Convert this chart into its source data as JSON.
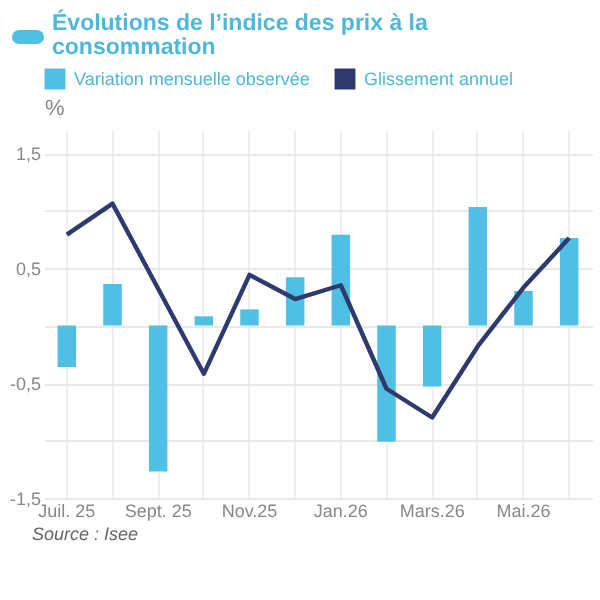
{
  "chart_data": {
    "type": "bar",
    "title": "Évolutions de l’indice des prix à la consommation",
    "ylabel": "%",
    "categories": [
      "Juil. 25",
      null,
      "Sept. 25",
      null,
      "Nov.25",
      null,
      "Jan.26",
      null,
      "Mars.26",
      null,
      "Mai.26",
      null
    ],
    "series": [
      {
        "name": "Variation mensuelle observée",
        "color": "#4fc0e3",
        "values": [
          -0.36,
          0.36,
          -1.27,
          0.08,
          0.14,
          0.42,
          0.79,
          -1.01,
          -0.53,
          1.03,
          0.3,
          0.76
        ]
      },
      {
        "name": "Glissement annuel",
        "type": "line",
        "color": "#2e3a6e",
        "values": [
          0.79,
          1.06,
          0.32,
          -0.42,
          0.44,
          0.23,
          0.35,
          -0.55,
          -0.8,
          -0.18,
          0.33,
          0.76
        ]
      }
    ],
    "ylim": [
      -1.5,
      1.7
    ],
    "yticks": [
      {
        "value": -1.5,
        "label": "-1,5"
      },
      {
        "value": -1,
        "label": null
      },
      {
        "value": -0.5,
        "label": "-0,5"
      },
      {
        "value": 0,
        "label": null
      },
      {
        "value": 0.5,
        "label": "0,5"
      },
      {
        "value": 1,
        "label": null
      },
      {
        "value": 1.5,
        "label": "1,5"
      }
    ],
    "grid": true,
    "legend": "top",
    "marker": "none",
    "line_style": "solid",
    "annotations": [
      "Source : Isee"
    ]
  }
}
